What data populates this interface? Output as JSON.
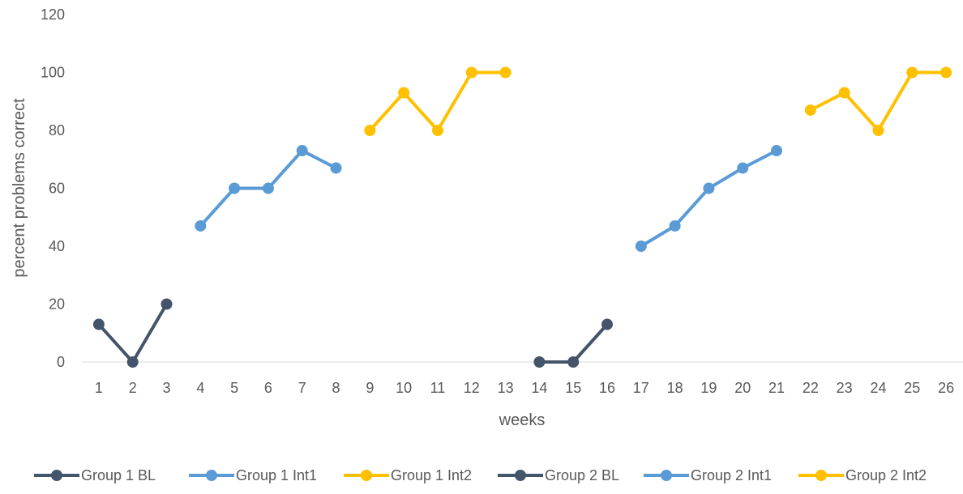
{
  "chart_data": {
    "type": "line",
    "title": "",
    "xlabel": "weeks",
    "ylabel": "percent problems correct",
    "ylim": [
      0,
      120
    ],
    "yticks": [
      0,
      20,
      40,
      60,
      80,
      100,
      120
    ],
    "categories": [
      "1",
      "2",
      "3",
      "4",
      "5",
      "6",
      "7",
      "8",
      "9",
      "10",
      "11",
      "12",
      "13",
      "14",
      "15",
      "16",
      "17",
      "18",
      "19",
      "20",
      "21",
      "22",
      "23",
      "24",
      "25",
      "26"
    ],
    "grid": "y-baseline-only",
    "legend_position": "bottom",
    "series": [
      {
        "name": "Group 1 BL",
        "color": "#44546A",
        "points": [
          {
            "x": 1,
            "y": 13
          },
          {
            "x": 2,
            "y": 0
          },
          {
            "x": 3,
            "y": 20
          }
        ]
      },
      {
        "name": "Group 1 Int1",
        "color": "#5B9BD5",
        "points": [
          {
            "x": 4,
            "y": 47
          },
          {
            "x": 5,
            "y": 60
          },
          {
            "x": 6,
            "y": 60
          },
          {
            "x": 7,
            "y": 73
          },
          {
            "x": 8,
            "y": 67
          }
        ]
      },
      {
        "name": "Group 1 Int2",
        "color": "#FFC000",
        "points": [
          {
            "x": 9,
            "y": 80
          },
          {
            "x": 10,
            "y": 93
          },
          {
            "x": 11,
            "y": 80
          },
          {
            "x": 12,
            "y": 100
          },
          {
            "x": 13,
            "y": 100
          }
        ]
      },
      {
        "name": "Group 2 BL",
        "color": "#44546A",
        "points": [
          {
            "x": 14,
            "y": 0
          },
          {
            "x": 15,
            "y": 0
          },
          {
            "x": 16,
            "y": 13
          }
        ]
      },
      {
        "name": "Group 2 Int1",
        "color": "#5B9BD5",
        "points": [
          {
            "x": 17,
            "y": 40
          },
          {
            "x": 18,
            "y": 47
          },
          {
            "x": 19,
            "y": 60
          },
          {
            "x": 20,
            "y": 67
          },
          {
            "x": 21,
            "y": 73
          }
        ]
      },
      {
        "name": "Group 2 Int2",
        "color": "#FFC000",
        "points": [
          {
            "x": 22,
            "y": 87
          },
          {
            "x": 23,
            "y": 93
          },
          {
            "x": 24,
            "y": 80
          },
          {
            "x": 25,
            "y": 100
          },
          {
            "x": 26,
            "y": 100
          }
        ]
      }
    ]
  }
}
